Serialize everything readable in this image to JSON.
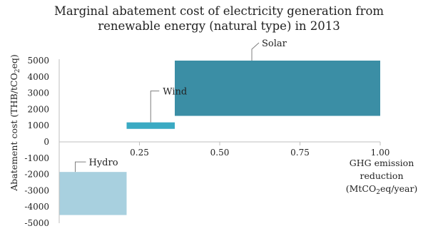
{
  "chart_data": {
    "type": "bar",
    "title_line1": "Marginal abatement cost of electricity generation from",
    "title_line2": "renewable energy (natural type) in 2013",
    "ylabel": "Abatement cost (THB/tCO2eq)",
    "ylabel_parts": [
      "Abatement cost (THB/tCO",
      "2",
      "eq)"
    ],
    "xlabel_lines": [
      "GHG emission",
      "reduction",
      "(MtCO2eq/year)"
    ],
    "xlabel_line3_parts": [
      "(MtCO",
      "2",
      "eq/year)"
    ],
    "ylim": [
      -5000,
      5000
    ],
    "xlim": [
      0,
      1.0
    ],
    "y_ticks": [
      -5000,
      -4000,
      -3000,
      -2000,
      -1000,
      0,
      1000,
      2000,
      3000,
      4000,
      5000
    ],
    "y_tick_labels": [
      "-5000",
      "-4000",
      "-3000",
      "-2000",
      "-1000",
      "0",
      "1000",
      "2000",
      "3000",
      "4000",
      "5000"
    ],
    "x_ticks": [
      0.25,
      0.5,
      0.75,
      1.0
    ],
    "x_tick_labels": [
      "0.25",
      "0.50",
      "0.75",
      "1.00"
    ],
    "series": [
      {
        "name": "Hydro",
        "x_start": 0.0,
        "x_end": 0.21,
        "y_low": -4500,
        "y_high": -1850,
        "color": "#a8d0df"
      },
      {
        "name": "Wind",
        "x_start": 0.21,
        "x_end": 0.36,
        "y_low": 800,
        "y_high": 1200,
        "color": "#3aaac3"
      },
      {
        "name": "Solar",
        "x_start": 0.36,
        "x_end": 1.0,
        "y_low": 1600,
        "y_high": 5000,
        "color": "#3b8ea5"
      }
    ]
  }
}
